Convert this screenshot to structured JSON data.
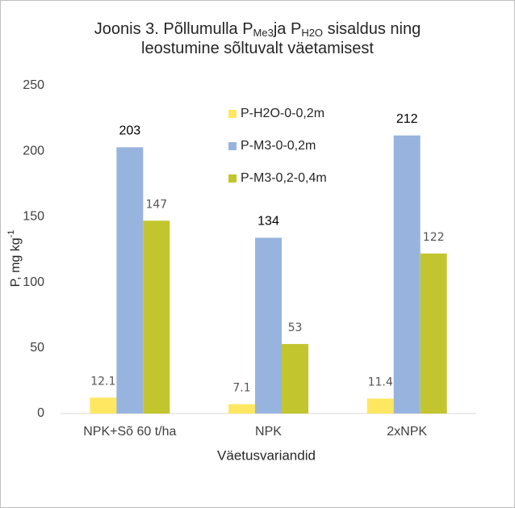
{
  "chart_data": {
    "type": "bar",
    "title": [
      [
        {
          "text": "Joonis 3. Põllumulla P"
        },
        {
          "text": "Me3",
          "sub": true
        },
        {
          "text": "ja P"
        },
        {
          "text": "H2O",
          "sub": true
        },
        {
          "text": " sisaldus ning"
        }
      ],
      [
        {
          "text": "leostumine sõltuvalt väetamisest"
        }
      ]
    ],
    "y_label": [
      {
        "text": "P, mg kg"
      },
      {
        "text": "-1",
        "sup": true
      }
    ],
    "x_label": "Väetusvariandid",
    "categories": [
      "NPK+Sõ 60 t/ha",
      "NPK",
      "2xNPK"
    ],
    "series": [
      {
        "name": "P-H2O-0-0,2m",
        "color": "#ffe761",
        "values": [
          12.1,
          7.1,
          11.4
        ]
      },
      {
        "name": "P-M3-0-0,2m",
        "color": "#97b4df",
        "values": [
          203,
          134,
          212
        ]
      },
      {
        "name": "P-M3-0,2-0,4m",
        "color": "#c3c52e",
        "values": [
          147,
          53,
          122
        ]
      }
    ],
    "ylim": [
      0,
      250
    ],
    "yticks": [
      0,
      50,
      100,
      150,
      200,
      250
    ],
    "grid": false
  }
}
